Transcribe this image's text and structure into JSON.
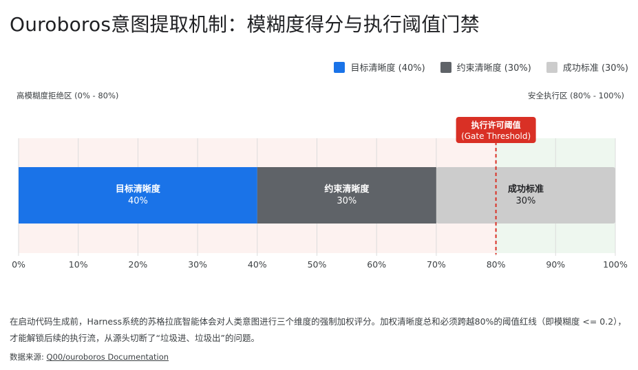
{
  "title": "Ouroboros意图提取机制：模糊度得分与执行阈值门禁",
  "legend": [
    {
      "label": "目标清晰度 (40%)",
      "color": "#1a73e8"
    },
    {
      "label": "约束清晰度 (30%)",
      "color": "#5f6368"
    },
    {
      "label": "成功标准 (30%)",
      "color": "#cccccc"
    }
  ],
  "zones": {
    "left_label": "高模糊度拒绝区 (0% - 80%)",
    "right_label": "安全执行区 (80% - 100%)",
    "left_color": "#fdf2f0",
    "right_color": "#eef7ef"
  },
  "threshold": {
    "title": "执行许可阈值",
    "subtitle": "(Gate Threshold)",
    "value": 80,
    "color": "#d93025"
  },
  "chart_data": {
    "type": "bar",
    "orientation": "horizontal-stacked",
    "xlim": [
      0,
      100
    ],
    "xticks": [
      "0%",
      "10%",
      "20%",
      "30%",
      "40%",
      "50%",
      "60%",
      "70%",
      "80%",
      "90%",
      "100%"
    ],
    "grid": true,
    "legend_position": "top-right",
    "series": [
      {
        "name": "目标清晰度",
        "value": 40,
        "label": "目标清晰度",
        "value_label": "40%",
        "color": "#1a73e8",
        "text_color": "#ffffff"
      },
      {
        "name": "约束清晰度",
        "value": 30,
        "label": "约束清晰度",
        "value_label": "30%",
        "color": "#5f6368",
        "text_color": "#ffffff"
      },
      {
        "name": "成功标准",
        "value": 30,
        "label": "成功标准",
        "value_label": "30%",
        "color": "#cccccc",
        "text_color": "#202124"
      }
    ]
  },
  "description": "在启动代码生成前，Harness系统的苏格拉底智能体会对人类意图进行三个维度的强制加权评分。加权清晰度总和必须跨越80%的阈值红线（即模糊度 <= 0.2），才能解锁后续的执行流，从源头切断了“垃圾进、垃圾出”的问题。",
  "source": {
    "prefix": "数据来源: ",
    "link_text": "Q00/ouroboros Documentation"
  }
}
